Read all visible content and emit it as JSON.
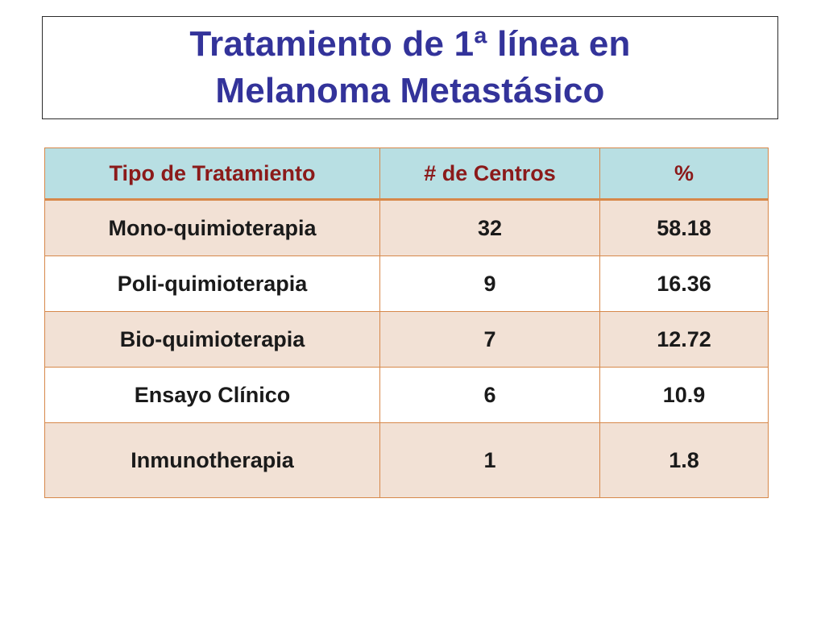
{
  "title": {
    "line1": "Tratamiento de 1ª línea en",
    "line2": "Melanoma Metastásico"
  },
  "table": {
    "headers": [
      "Tipo de Tratamiento",
      "# de Centros",
      "%"
    ],
    "rows": [
      [
        "Mono-quimioterapia",
        "32",
        "58.18"
      ],
      [
        "Poli-quimioterapia",
        "9",
        "16.36"
      ],
      [
        "Bio-quimioterapia",
        "7",
        "12.72"
      ],
      [
        "Ensayo Clínico",
        "6",
        "10.9"
      ],
      [
        "Inmunotherapia",
        "1",
        "1.8"
      ]
    ]
  },
  "colors": {
    "title_text": "#33339a",
    "header_bg": "#b8dfe3",
    "header_text": "#8b1a1a",
    "row_shade_bg": "#f2e1d5",
    "border": "#d7884a"
  }
}
